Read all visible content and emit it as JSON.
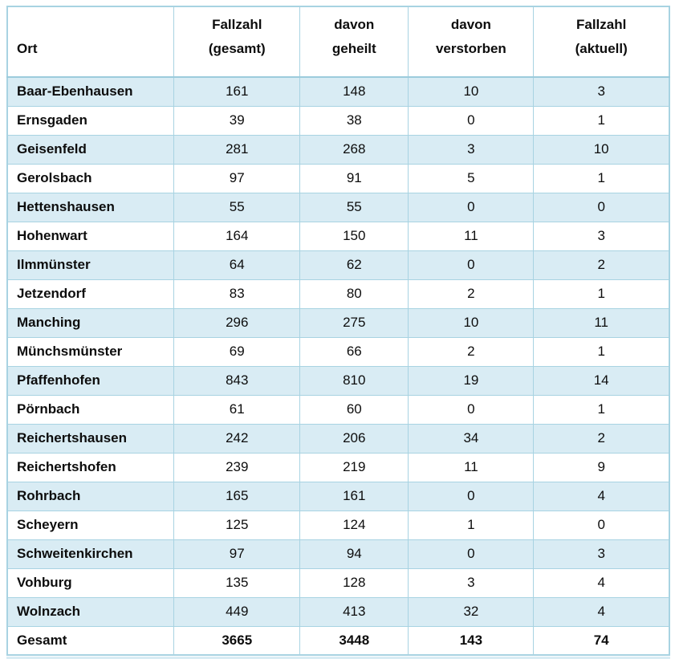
{
  "table": {
    "headers": [
      {
        "line1": "",
        "line2": "Ort"
      },
      {
        "line1": "Fallzahl",
        "line2": "(gesamt)"
      },
      {
        "line1": "davon",
        "line2": "geheilt"
      },
      {
        "line1": "davon",
        "line2": "verstorben"
      },
      {
        "line1": "Fallzahl",
        "line2": "(aktuell)"
      }
    ],
    "rows": [
      {
        "ort": "Baar-Ebenhausen",
        "gesamt": "161",
        "geheilt": "148",
        "verstorben": "10",
        "aktuell": "3"
      },
      {
        "ort": "Ernsgaden",
        "gesamt": "39",
        "geheilt": "38",
        "verstorben": "0",
        "aktuell": "1"
      },
      {
        "ort": "Geisenfeld",
        "gesamt": "281",
        "geheilt": "268",
        "verstorben": "3",
        "aktuell": "10"
      },
      {
        "ort": "Gerolsbach",
        "gesamt": "97",
        "geheilt": "91",
        "verstorben": "5",
        "aktuell": "1"
      },
      {
        "ort": "Hettenshausen",
        "gesamt": "55",
        "geheilt": "55",
        "verstorben": "0",
        "aktuell": "0"
      },
      {
        "ort": "Hohenwart",
        "gesamt": "164",
        "geheilt": "150",
        "verstorben": "11",
        "aktuell": "3"
      },
      {
        "ort": "Ilmmünster",
        "gesamt": "64",
        "geheilt": "62",
        "verstorben": "0",
        "aktuell": "2"
      },
      {
        "ort": "Jetzendorf",
        "gesamt": "83",
        "geheilt": "80",
        "verstorben": "2",
        "aktuell": "1"
      },
      {
        "ort": "Manching",
        "gesamt": "296",
        "geheilt": "275",
        "verstorben": "10",
        "aktuell": "11"
      },
      {
        "ort": "Münchsmünster",
        "gesamt": "69",
        "geheilt": "66",
        "verstorben": "2",
        "aktuell": "1"
      },
      {
        "ort": "Pfaffenhofen",
        "gesamt": "843",
        "geheilt": "810",
        "verstorben": "19",
        "aktuell": "14"
      },
      {
        "ort": "Pörnbach",
        "gesamt": "61",
        "geheilt": "60",
        "verstorben": "0",
        "aktuell": "1"
      },
      {
        "ort": "Reichertshausen",
        "gesamt": "242",
        "geheilt": "206",
        "verstorben": "34",
        "aktuell": "2"
      },
      {
        "ort": "Reichertshofen",
        "gesamt": "239",
        "geheilt": "219",
        "verstorben": "11",
        "aktuell": "9"
      },
      {
        "ort": "Rohrbach",
        "gesamt": "165",
        "geheilt": "161",
        "verstorben": "0",
        "aktuell": "4"
      },
      {
        "ort": "Scheyern",
        "gesamt": "125",
        "geheilt": "124",
        "verstorben": "1",
        "aktuell": "0"
      },
      {
        "ort": "Schweitenkirchen",
        "gesamt": "97",
        "geheilt": "94",
        "verstorben": "0",
        "aktuell": "3"
      },
      {
        "ort": "Vohburg",
        "gesamt": "135",
        "geheilt": "128",
        "verstorben": "3",
        "aktuell": "4"
      },
      {
        "ort": "Wolnzach",
        "gesamt": "449",
        "geheilt": "413",
        "verstorben": "32",
        "aktuell": "4"
      },
      {
        "ort": "Gesamt",
        "gesamt": "3665",
        "geheilt": "3448",
        "verstorben": "143",
        "aktuell": "74"
      }
    ],
    "colors": {
      "stripe": "#d9ecf4",
      "border": "#a8d3e2",
      "text": "#0d0d0d",
      "background": "#ffffff"
    }
  }
}
